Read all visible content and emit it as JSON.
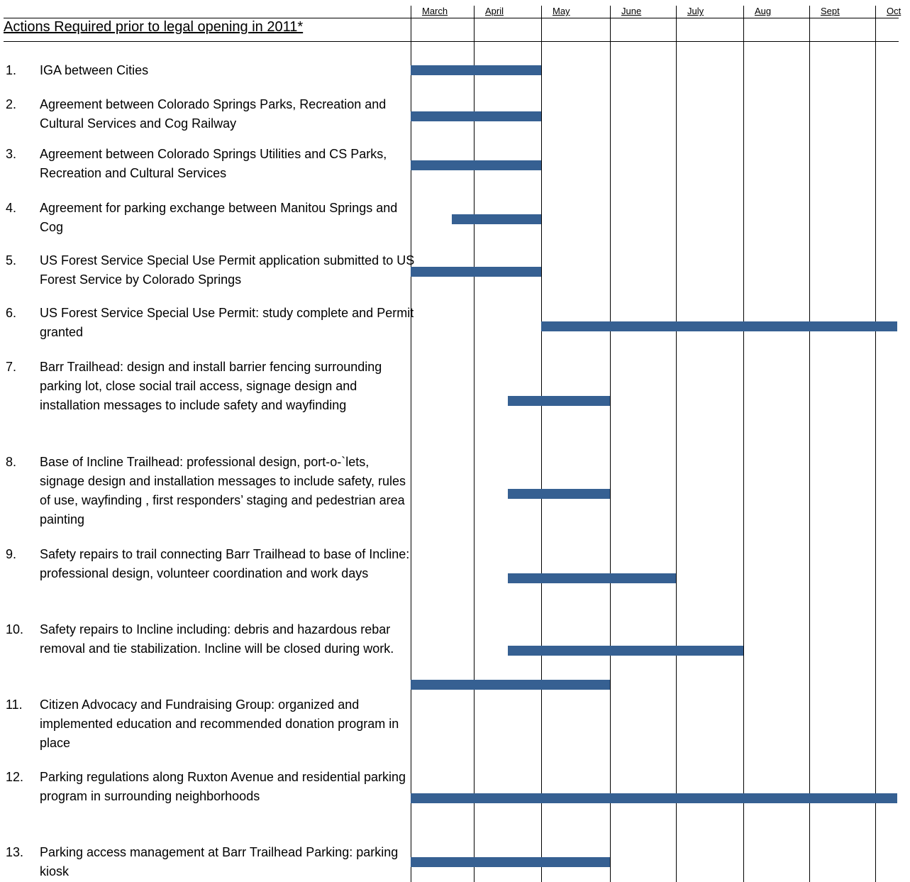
{
  "title": "Actions Required prior to legal opening in 2011*",
  "colors": {
    "bar": "#366092",
    "grid": "#000000"
  },
  "chart_data": {
    "type": "bar",
    "orientation": "horizontal-gantt",
    "months": [
      "March",
      "April",
      "May",
      "June",
      "July",
      "Aug",
      "Sept",
      "Oct"
    ],
    "grid": true,
    "tasks": [
      {
        "num": "1.",
        "label": "IGA between Cities",
        "start": 0,
        "end": 2
      },
      {
        "num": "2.",
        "label": "Agreement between Colorado Springs Parks, Recreation and Cultural Services and Cog Railway",
        "start": 0,
        "end": 2
      },
      {
        "num": "3.",
        "label": "Agreement between Colorado Springs Utilities and CS Parks, Recreation and Cultural Services",
        "start": 0,
        "end": 2
      },
      {
        "num": "4.",
        "label": "Agreement for parking exchange between Manitou Springs and Cog",
        "start": 0.65,
        "end": 2
      },
      {
        "num": "5.",
        "label": "US Forest Service Special Use Permit application submitted to US Forest Service by Colorado Springs",
        "start": 0,
        "end": 2
      },
      {
        "num": "6.",
        "label": "US Forest Service Special Use Permit: study complete and Permit granted",
        "start": 2,
        "end": 7.35
      },
      {
        "num": "7.",
        "label": "Barr Trailhead:  design and  install barrier fencing surrounding parking lot, close social trail access, signage design and installation messages to include safety and wayfinding",
        "start": 1.5,
        "end": 3
      },
      {
        "num": "8.",
        "label": "Base of Incline Trailhead:  professional design, port-o-`lets, signage design and installation messages to include safety, rules of use, wayfinding , first responders’ staging and pedestrian area painting",
        "start": 1.5,
        "end": 3
      },
      {
        "num": "9.",
        "label": "Safety repairs to trail connecting Barr Trailhead to base of Incline: professional design, volunteer coordination and work days",
        "start": 1.5,
        "end": 4
      },
      {
        "num": "10.",
        "label": "Safety repairs to Incline including:  debris and hazardous rebar removal and tie stabilization. Incline will be closed during work.",
        "start": 1.5,
        "end": 5
      },
      {
        "num": "11.",
        "label": "Citizen Advocacy and Fundraising Group: organized and implemented education and recommended donation program in place",
        "start": 0,
        "end": 3
      },
      {
        "num": "12.",
        "label": " Parking regulations along Ruxton Avenue and residential parking program in surrounding neighborhoods",
        "start": 0,
        "end": 7.35
      },
      {
        "num": "13.",
        "label": "Parking access management at Barr Trailhead Parking: parking kiosk",
        "start": 0,
        "end": 3
      }
    ]
  }
}
